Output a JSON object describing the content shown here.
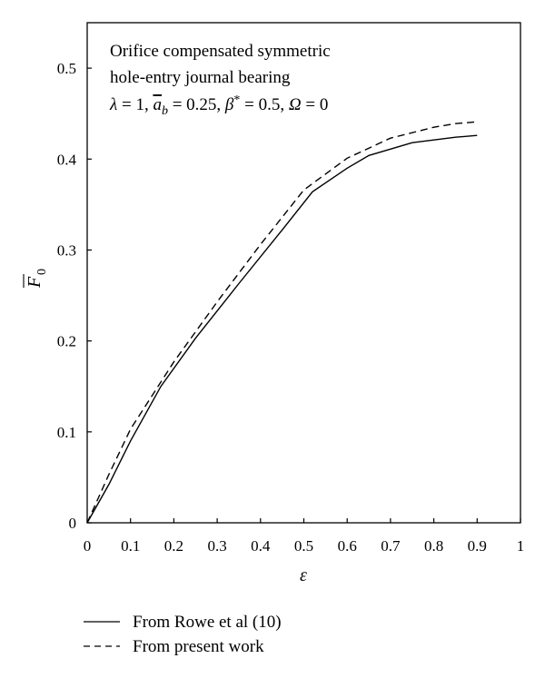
{
  "chart_data": {
    "type": "line",
    "annotation": {
      "line1": "Orifice compensated symmetric",
      "line2": "hole-entry journal bearing",
      "params": [
        {
          "sym": "λ",
          "sub": "",
          "bar": false,
          "eq": " = 1, "
        },
        {
          "sym": "a",
          "sub": "b",
          "bar": true,
          "eq": " = 0.25, "
        },
        {
          "sym": "β",
          "sup": "*",
          "bar": false,
          "eq": " = 0.5, "
        },
        {
          "sym": "Ω",
          "sub": "",
          "bar": false,
          "eq": " = 0"
        }
      ]
    },
    "xlabel": "ε",
    "ylabel": {
      "symbol": "F",
      "sub": "0"
    },
    "xlim": [
      0,
      1
    ],
    "ylim": [
      0,
      0.55
    ],
    "xticks": [
      "0",
      "0.1",
      "0.2",
      "0.3",
      "0.4",
      "0.5",
      "0.6",
      "0.7",
      "0.8",
      "0.9",
      "1"
    ],
    "yticks": [
      "0",
      "0.1",
      "0.2",
      "0.3",
      "0.4",
      "0.5"
    ],
    "xtick_values": [
      0,
      0.1,
      0.2,
      0.3,
      0.4,
      0.5,
      0.6,
      0.7,
      0.8,
      0.9,
      1
    ],
    "ytick_values": [
      0,
      0.1,
      0.2,
      0.3,
      0.4,
      0.5
    ],
    "series": [
      {
        "name": "From Rowe et al (10)",
        "style": "solid",
        "x": [
          0,
          0.05,
          0.1,
          0.17,
          0.25,
          0.35,
          0.45,
          0.52,
          0.6,
          0.65,
          0.75,
          0.85,
          0.9
        ],
        "y": [
          0,
          0.042,
          0.09,
          0.15,
          0.203,
          0.263,
          0.322,
          0.364,
          0.39,
          0.404,
          0.418,
          0.424,
          0.426
        ]
      },
      {
        "name": "From present work",
        "style": "dashed",
        "x": [
          0,
          0.05,
          0.1,
          0.2,
          0.3,
          0.4,
          0.5,
          0.6,
          0.7,
          0.8,
          0.85,
          0.9
        ],
        "y": [
          0,
          0.053,
          0.103,
          0.177,
          0.243,
          0.306,
          0.366,
          0.401,
          0.423,
          0.435,
          0.439,
          0.441
        ]
      }
    ],
    "legend": {
      "placement": "bottom-left"
    }
  }
}
